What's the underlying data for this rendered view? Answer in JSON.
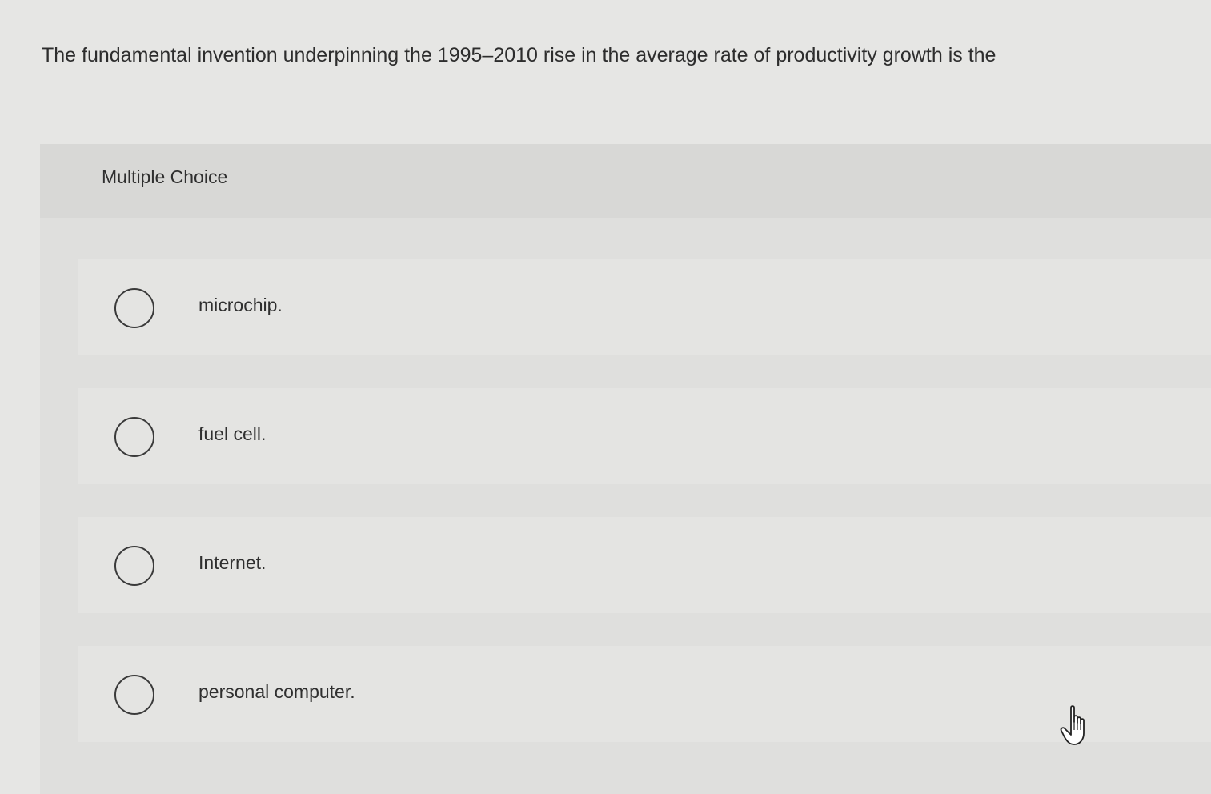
{
  "question": {
    "text": "The fundamental invention underpinning the 1995–2010 rise in the average rate of productivity growth is the"
  },
  "panel": {
    "title": "Multiple Choice"
  },
  "options": [
    {
      "label": "microchip."
    },
    {
      "label": "fuel cell."
    },
    {
      "label": "Internet."
    },
    {
      "label": "personal computer."
    }
  ],
  "cursor": {
    "icon": "hand-pointer-icon"
  }
}
